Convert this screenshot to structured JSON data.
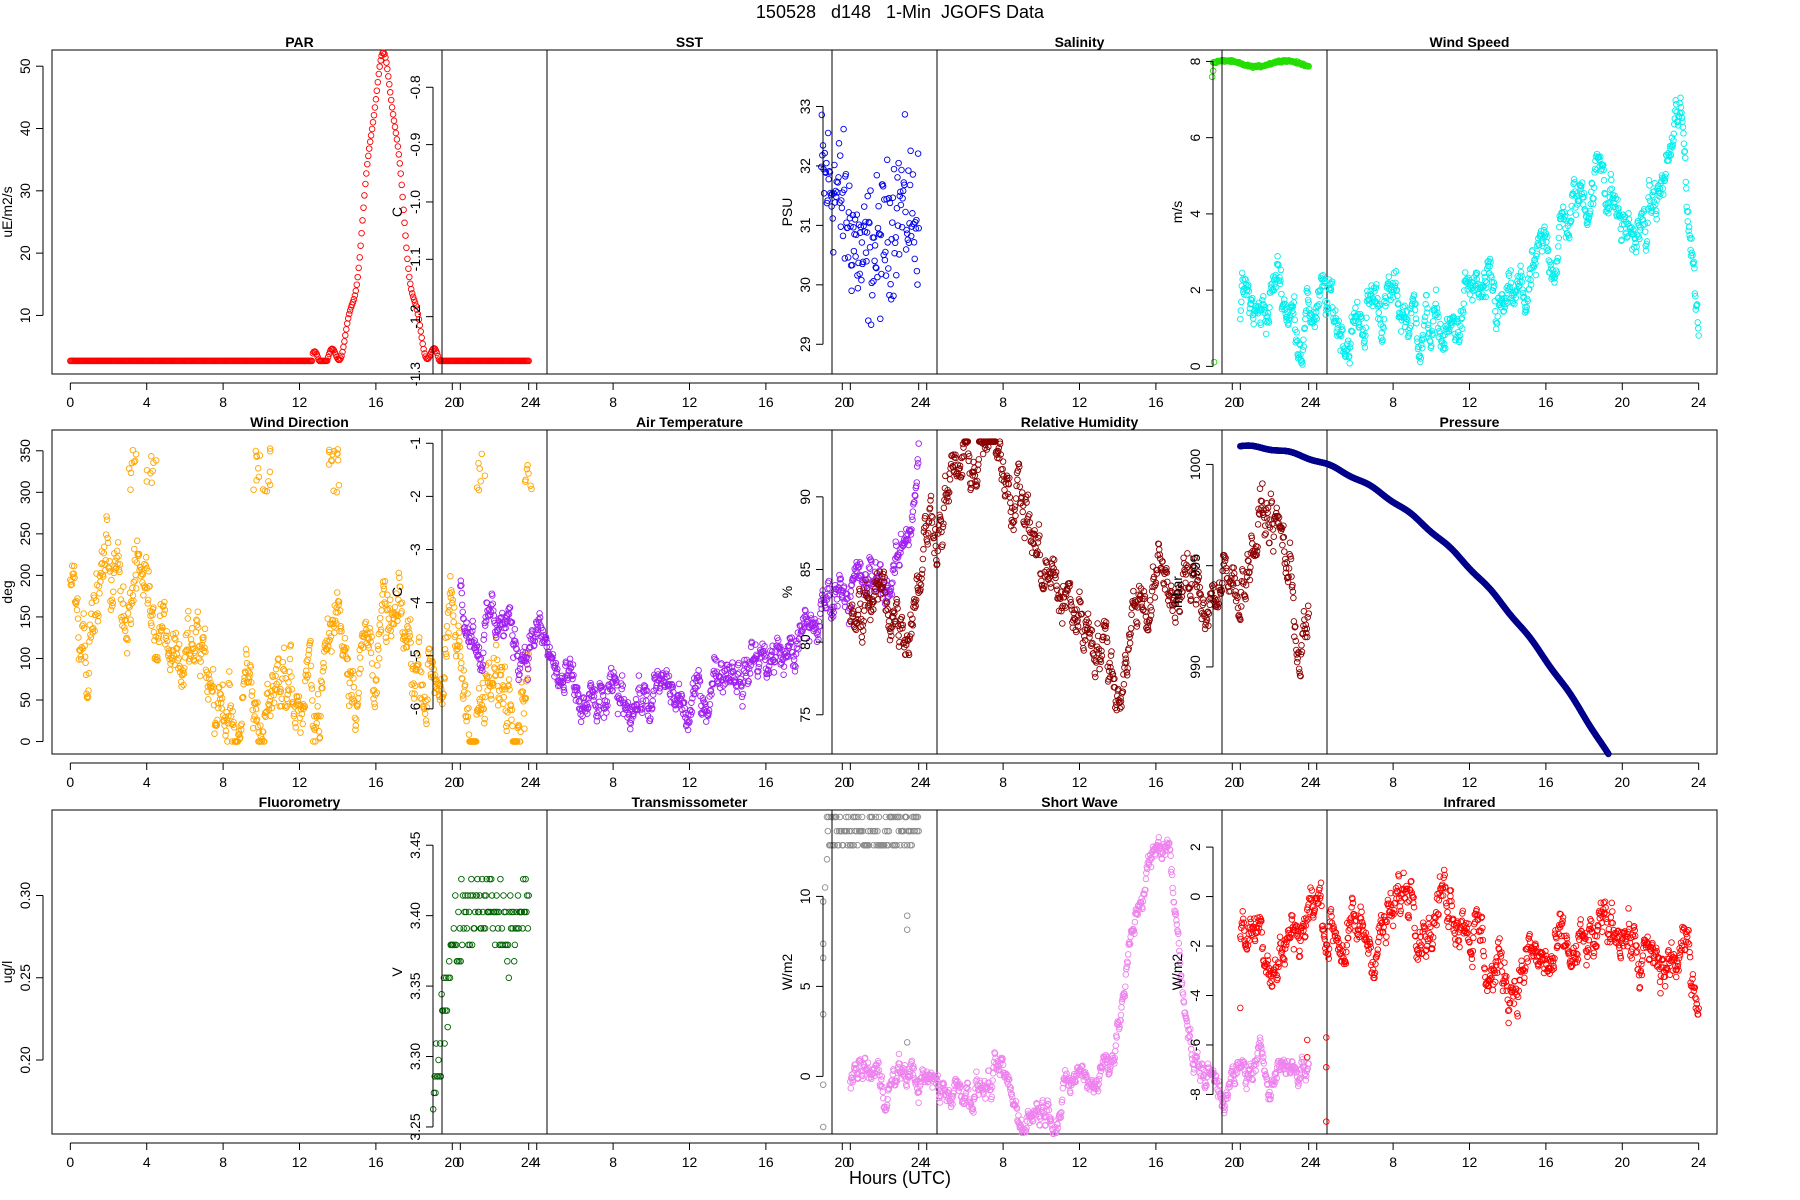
{
  "figure": {
    "title": "150528   d148   1-Min  JGOFS Data",
    "xlabel": "Hours (UTC)"
  },
  "chart_data": [
    {
      "type": "scatter",
      "title": "PAR",
      "ylabel": "uE/m2/s",
      "color": "#ff0000",
      "xlim": [
        -0.96,
        24.96
      ],
      "ylim": [
        0.6,
        52.6
      ],
      "xticks": [
        0,
        4,
        8,
        12,
        16,
        20,
        24
      ],
      "yticks": [
        10,
        20,
        30,
        40,
        50
      ],
      "kind": "par"
    },
    {
      "type": "scatter",
      "title": "SST",
      "ylabel": "C",
      "color": "#0000ee",
      "xlim": [
        -0.96,
        24.96
      ],
      "ylim": [
        -1.3,
        -0.735
      ],
      "xticks": [
        0,
        4,
        8,
        12,
        16,
        20,
        24
      ],
      "yticks": [
        -1.3,
        -1.2,
        -1.1,
        -1.0,
        -0.9,
        -0.8
      ],
      "kind": "sst"
    },
    {
      "type": "scatter",
      "title": "Salinity",
      "ylabel": "PSU",
      "color": "#22dd00",
      "xlim": [
        -0.96,
        24.96
      ],
      "ylim": [
        28.5,
        33.95
      ],
      "xticks": [
        0,
        4,
        8,
        12,
        16,
        20,
        24
      ],
      "yticks": [
        29,
        30,
        31,
        32,
        33
      ],
      "kind": "sal"
    },
    {
      "type": "scatter",
      "title": "Wind Speed",
      "ylabel": "m/s",
      "color": "#00eeee",
      "xlim": [
        -0.96,
        24.96
      ],
      "ylim": [
        -0.2,
        8.3
      ],
      "xticks": [
        0,
        4,
        8,
        12,
        16,
        20,
        24
      ],
      "yticks": [
        0,
        2,
        4,
        6,
        8
      ],
      "kind": "ws"
    },
    {
      "type": "scatter",
      "title": "Wind Direction",
      "ylabel": "deg",
      "color": "#ffa500",
      "xlim": [
        -0.96,
        24.96
      ],
      "ylim": [
        -15,
        375
      ],
      "xticks": [
        0,
        4,
        8,
        12,
        16,
        20,
        24
      ],
      "yticks": [
        0,
        50,
        100,
        150,
        200,
        250,
        300,
        350
      ],
      "kind": "wd"
    },
    {
      "type": "scatter",
      "title": "Air Temperature",
      "ylabel": "C",
      "color": "#a020f0",
      "xlim": [
        -0.96,
        24.96
      ],
      "ylim": [
        -6.85,
        -0.75
      ],
      "xticks": [
        0,
        4,
        8,
        12,
        16,
        20,
        24
      ],
      "yticks": [
        -6,
        -5,
        -4,
        -3,
        -2,
        -1
      ],
      "kind": "at"
    },
    {
      "type": "scatter",
      "title": "Relative Humidity",
      "ylabel": "%",
      "color": "#8b0000",
      "xlim": [
        -0.96,
        24.96
      ],
      "ylim": [
        72.3,
        94.6
      ],
      "xticks": [
        0,
        4,
        8,
        12,
        16,
        20,
        24
      ],
      "yticks": [
        75,
        80,
        85,
        90
      ],
      "kind": "rh"
    },
    {
      "type": "scatter",
      "title": "Pressure",
      "ylabel": "mbar",
      "color": "#00008b",
      "xlim": [
        -0.96,
        24.96
      ],
      "ylim": [
        985.7,
        1001.7
      ],
      "xticks": [
        0,
        4,
        8,
        12,
        16,
        20,
        24
      ],
      "yticks": [
        990,
        995,
        1000
      ],
      "kind": "pr"
    },
    {
      "type": "scatter",
      "title": "Fluorometry",
      "ylabel": "ug/l",
      "color": "#006400",
      "xlim": [
        -0.96,
        24.96
      ],
      "ylim": [
        0.155,
        0.352
      ],
      "xticks": [
        0,
        4,
        8,
        12,
        16,
        20,
        24
      ],
      "yticks": [
        0.2,
        0.25,
        0.3
      ],
      "kind": "fl"
    },
    {
      "type": "scatter",
      "title": "Transmissometer",
      "ylabel": "V",
      "color": "#8c8c8c",
      "xlim": [
        -0.96,
        24.96
      ],
      "ylim": [
        3.245,
        3.475
      ],
      "xticks": [
        0,
        4,
        8,
        12,
        16,
        20,
        24
      ],
      "yticks": [
        3.25,
        3.3,
        3.35,
        3.4,
        3.45
      ],
      "kind": "tr"
    },
    {
      "type": "scatter",
      "title": "Short Wave",
      "ylabel": "W/m2",
      "color": "#ee82ee",
      "xlim": [
        -0.96,
        24.96
      ],
      "ylim": [
        -3.2,
        14.8
      ],
      "xticks": [
        0,
        4,
        8,
        12,
        16,
        20,
        24
      ],
      "yticks": [
        0,
        5,
        10
      ],
      "kind": "sw"
    },
    {
      "type": "scatter",
      "title": "Infrared",
      "ylabel": "W/m2",
      "color": "#ff0000",
      "xlim": [
        -0.96,
        24.96
      ],
      "ylim": [
        -9.6,
        3.5
      ],
      "xticks": [
        0,
        4,
        8,
        12,
        16,
        20,
        24
      ],
      "yticks": [
        -8,
        -6,
        -4,
        -2,
        0,
        2
      ],
      "kind": "ir"
    }
  ]
}
